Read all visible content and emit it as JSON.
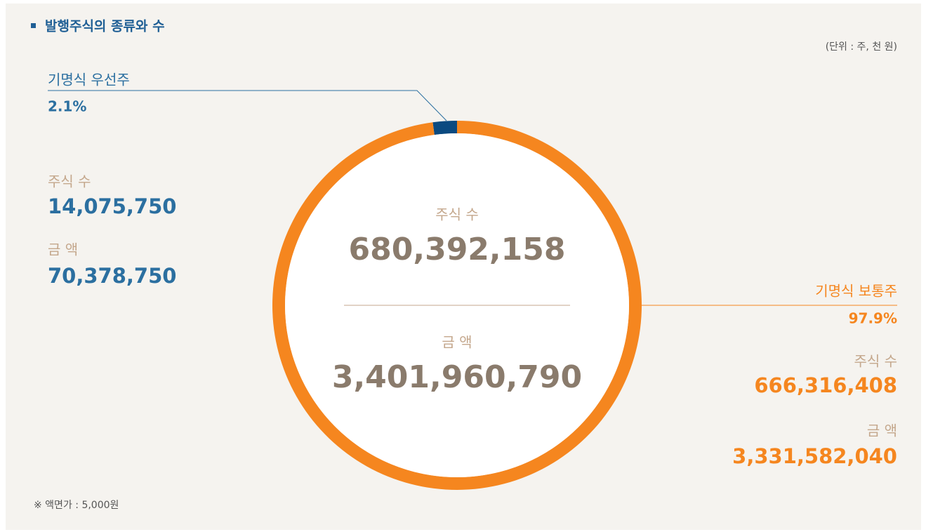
{
  "chart_data": {
    "type": "donut",
    "title": "발행주식의 종류와 수",
    "unit_note": "(단위 : 주, 천 원)",
    "footnote": "※ 액면가 : 5,000원",
    "categories": [
      "기명식 우선주",
      "기명식 보통주"
    ],
    "values": [
      2.1,
      97.9
    ],
    "value_labels": [
      "2.1%",
      "97.9%"
    ],
    "colors": [
      "#0b4a80",
      "#f5861f"
    ],
    "details": [
      {
        "count_label": "주식 수",
        "count": "14,075,750",
        "amount_label": "금 액",
        "amount": "70,378,750"
      },
      {
        "count_label": "주식 수",
        "count": "666,316,408",
        "amount_label": "금 액",
        "amount": "3,331,582,040"
      }
    ],
    "center": {
      "count_label": "주식 수",
      "count": "680,392,158",
      "amount_label": "금 액",
      "amount": "3,401,960,790"
    }
  }
}
